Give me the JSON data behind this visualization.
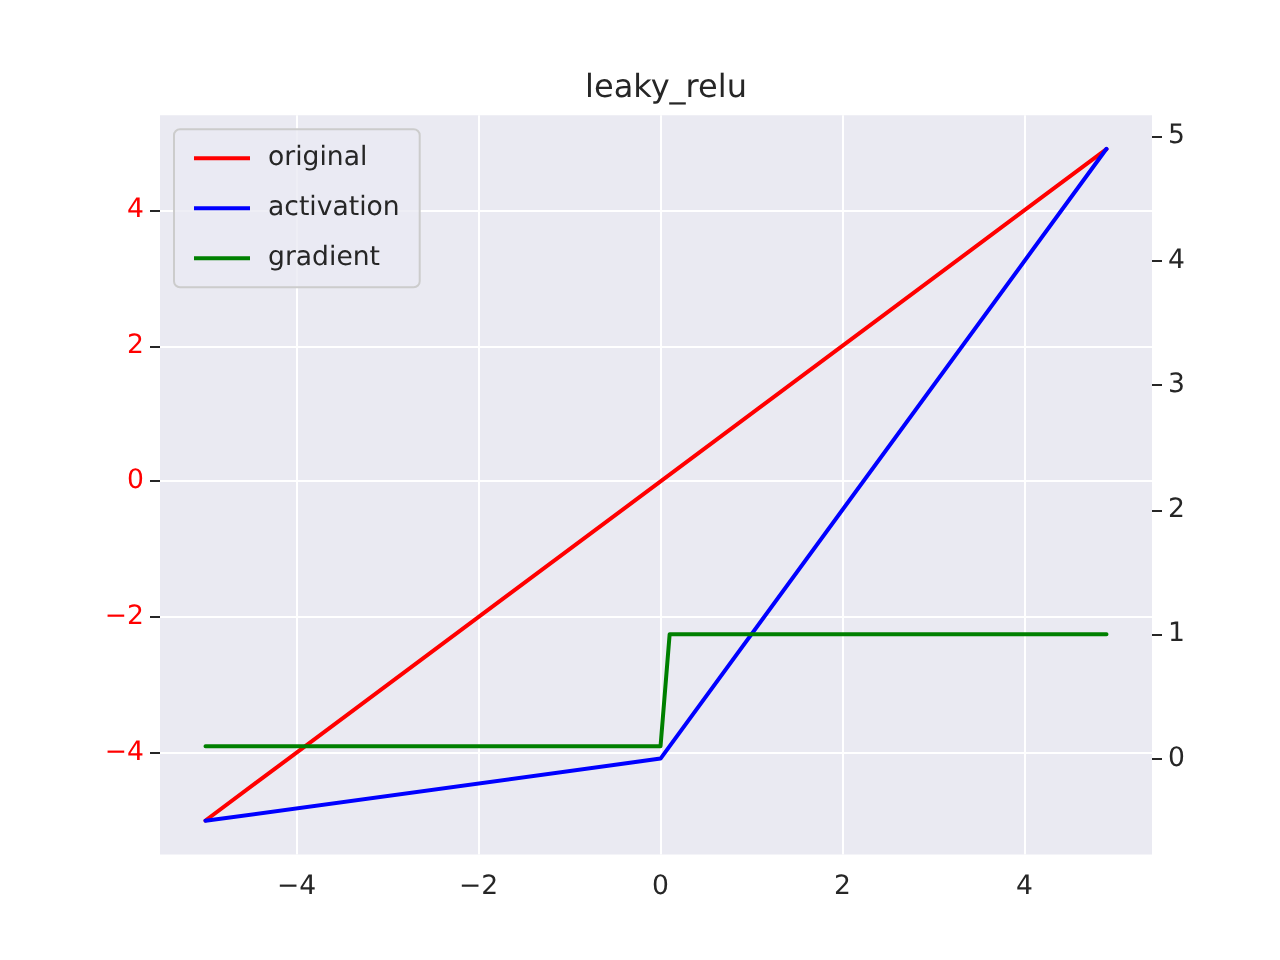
{
  "chart_data": {
    "type": "line",
    "title": "leaky_relu",
    "xlim": [
      -5.5,
      5.4
    ],
    "xticks": [
      -4,
      -2,
      0,
      2,
      4
    ],
    "ylim": [
      -5.5,
      5.4
    ],
    "yticks": [
      -4,
      -2,
      0,
      2,
      4
    ],
    "y2lim": [
      -0.77,
      5.17
    ],
    "y2ticks": [
      0,
      1,
      2,
      3,
      4,
      5
    ],
    "grid": true,
    "legend": "top left",
    "line_style": "solid",
    "marker": "none",
    "series": [
      {
        "name": "original",
        "color": "#ff0000",
        "x": [
          -5,
          4.9
        ],
        "values": [
          -5,
          4.9
        ]
      },
      {
        "name": "activation",
        "color": "#0000ff",
        "axis": "y2",
        "x": [
          -5,
          0,
          4.9
        ],
        "values": [
          -0.5,
          0,
          4.9
        ]
      },
      {
        "name": "gradient",
        "color": "#008000",
        "axis": "y2",
        "x": [
          -5,
          0,
          0.1,
          4.9
        ],
        "values": [
          0.1,
          0.1,
          1,
          1
        ]
      }
    ]
  }
}
